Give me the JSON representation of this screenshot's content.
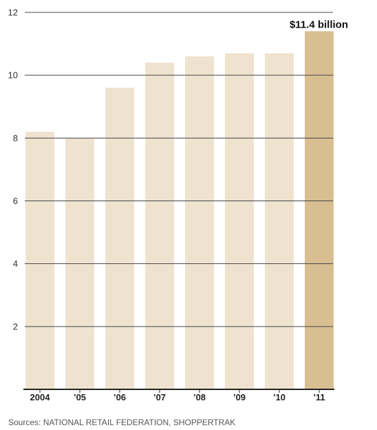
{
  "chart_data": {
    "type": "bar",
    "categories": [
      "2004",
      "’05",
      "’06",
      "’07",
      "’08",
      "’09",
      "’10",
      "’11"
    ],
    "values": [
      8.2,
      8.0,
      9.6,
      10.4,
      10.6,
      10.7,
      10.7,
      11.4
    ],
    "highlight_index": 7,
    "highlight_label": "$11.4 billion",
    "yticks": [
      2,
      4,
      6,
      8,
      10,
      12
    ],
    "ylim": [
      0,
      12
    ],
    "grid": true,
    "colors": {
      "bar": "#efe3cf",
      "highlight": "#d8be91",
      "grid": "#444444",
      "axis": "#222222"
    }
  },
  "source_note": "Sources: NATIONAL RETAIL FEDERATION, SHOPPERTRAK"
}
